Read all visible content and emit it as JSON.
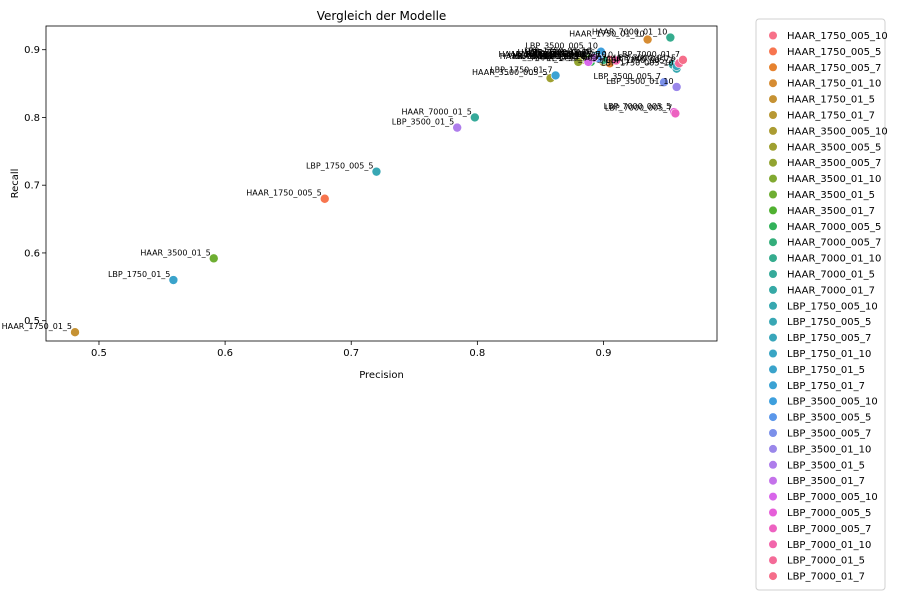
{
  "chart_data": {
    "type": "scatter",
    "title": "Vergleich der Modelle",
    "xlabel": "Precision",
    "ylabel": "Recall",
    "xlim": [
      0.458,
      0.99
    ],
    "ylim": [
      0.47,
      0.935
    ],
    "xticks": [
      0.5,
      0.6,
      0.7,
      0.8,
      0.9
    ],
    "xtick_labels": [
      "0.5",
      "0.6",
      "0.7",
      "0.8",
      "0.9"
    ],
    "yticks": [
      0.5,
      0.6,
      0.7,
      0.8,
      0.9
    ],
    "ytick_labels": [
      "0.5",
      "0.6",
      "0.7",
      "0.8",
      "0.9"
    ],
    "grid": false,
    "legend_position": "outside-right",
    "series": [
      {
        "name": "HAAR_1750_005_10",
        "color": "#f77189",
        "x": 0.905,
        "y": 0.885
      },
      {
        "name": "HAAR_1750_005_5",
        "color": "#f7754f",
        "x": 0.679,
        "y": 0.68
      },
      {
        "name": "HAAR_1750_005_7",
        "color": "#e6822f",
        "x": 0.905,
        "y": 0.88
      },
      {
        "name": "HAAR_1750_01_10",
        "color": "#d68c32",
        "x": 0.935,
        "y": 0.915
      },
      {
        "name": "HAAR_1750_01_5",
        "color": "#c69233",
        "x": 0.481,
        "y": 0.483
      },
      {
        "name": "HAAR_1750_01_7",
        "color": "#b89833",
        "x": 0.9,
        "y": 0.882
      },
      {
        "name": "HAAR_3500_005_10",
        "color": "#ab9c32",
        "x": 0.883,
        "y": 0.885
      },
      {
        "name": "HAAR_3500_005_5",
        "color": "#9fa031",
        "x": 0.858,
        "y": 0.858
      },
      {
        "name": "HAAR_3500_005_7",
        "color": "#92a431",
        "x": 0.88,
        "y": 0.882
      },
      {
        "name": "HAAR_3500_01_10",
        "color": "#81a931",
        "x": 0.887,
        "y": 0.885
      },
      {
        "name": "HAAR_3500_01_5",
        "color": "#6eae32",
        "x": 0.591,
        "y": 0.592
      },
      {
        "name": "HAAR_3500_01_7",
        "color": "#50b131",
        "x": 0.89,
        "y": 0.888
      },
      {
        "name": "HAAR_7000_005_5",
        "color": "#32b25a",
        "x": 0.89,
        "y": 0.882
      },
      {
        "name": "HAAR_7000_005_7",
        "color": "#34ae7b",
        "x": 0.9,
        "y": 0.885
      },
      {
        "name": "HAAR_7000_01_10",
        "color": "#35ac8e",
        "x": 0.953,
        "y": 0.918
      },
      {
        "name": "HAAR_7000_01_5",
        "color": "#36aa9a",
        "x": 0.798,
        "y": 0.8
      },
      {
        "name": "HAAR_7000_01_7",
        "color": "#36a9a6",
        "x": 0.955,
        "y": 0.878
      },
      {
        "name": "LBP_1750_005_10",
        "color": "#37a8b0",
        "x": 0.958,
        "y": 0.872
      },
      {
        "name": "LBP_1750_005_5",
        "color": "#38a7b4",
        "x": 0.72,
        "y": 0.72
      },
      {
        "name": "LBP_1750_005_7",
        "color": "#38a6bb",
        "x": 0.958,
        "y": 0.876
      },
      {
        "name": "LBP_1750_01_10",
        "color": "#39a5c4",
        "x": 0.893,
        "y": 0.89
      },
      {
        "name": "LBP_1750_01_5",
        "color": "#3aa3cb",
        "x": 0.559,
        "y": 0.56
      },
      {
        "name": "LBP_1750_01_7",
        "color": "#3ba2d3",
        "x": 0.862,
        "y": 0.862
      },
      {
        "name": "LBP_3500_005_10",
        "color": "#3d9fdd",
        "x": 0.898,
        "y": 0.897
      },
      {
        "name": "LBP_3500_005_5",
        "color": "#5b97ea",
        "x": 0.896,
        "y": 0.887
      },
      {
        "name": "LBP_3500_005_7",
        "color": "#7b90ea",
        "x": 0.948,
        "y": 0.852
      },
      {
        "name": "LBP_3500_01_10",
        "color": "#9a87ea",
        "x": 0.958,
        "y": 0.845
      },
      {
        "name": "LBP_3500_01_5",
        "color": "#ae7deb",
        "x": 0.784,
        "y": 0.785
      },
      {
        "name": "LBP_3500_01_7",
        "color": "#c472ea",
        "x": 0.892,
        "y": 0.888
      },
      {
        "name": "LBP_7000_005_10",
        "color": "#d866ea",
        "x": 0.888,
        "y": 0.882
      },
      {
        "name": "LBP_7000_005_5",
        "color": "#e65fd9",
        "x": 0.956,
        "y": 0.808
      },
      {
        "name": "LBP_7000_005_7",
        "color": "#ed62c1",
        "x": 0.957,
        "y": 0.806
      },
      {
        "name": "LBP_7000_01_10",
        "color": "#f266ab",
        "x": 0.91,
        "y": 0.884
      },
      {
        "name": "LBP_7000_01_5",
        "color": "#f46b98",
        "x": 0.96,
        "y": 0.88
      },
      {
        "name": "LBP_7000_01_7",
        "color": "#f56e8a",
        "x": 0.963,
        "y": 0.885
      }
    ]
  }
}
